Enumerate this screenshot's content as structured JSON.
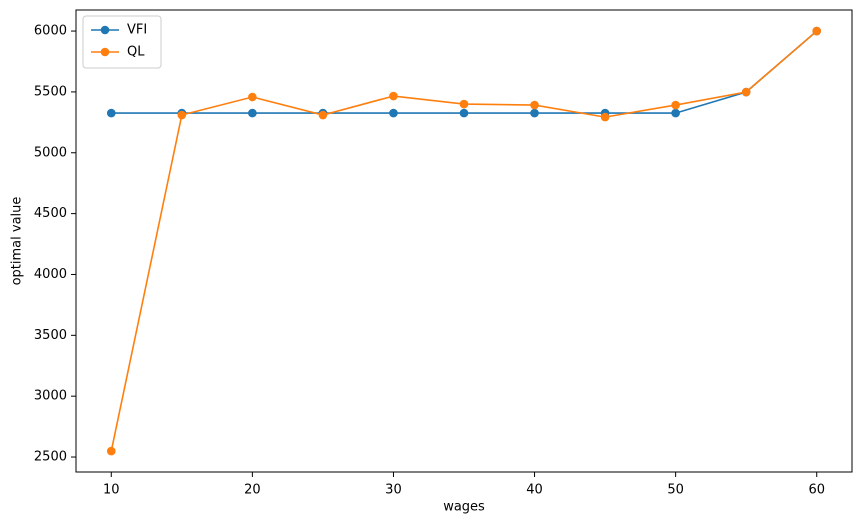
{
  "chart_data": {
    "type": "line",
    "x_label": "wages",
    "y_label": "optimal value",
    "x": [
      10,
      15,
      20,
      25,
      30,
      35,
      40,
      45,
      50,
      55,
      60
    ],
    "series": [
      {
        "name": "VFI",
        "color": "#1f77b4",
        "values": [
          5326,
          5326,
          5326,
          5326,
          5326,
          5326,
          5326,
          5326,
          5326,
          5499,
          6000
        ]
      },
      {
        "name": "QL",
        "color": "#ff7f0e",
        "values": [
          2549,
          5310,
          5458,
          5310,
          5466,
          5400,
          5392,
          5293,
          5392,
          5499,
          6000
        ]
      }
    ],
    "xlim": [
      7.5,
      62.5
    ],
    "xticks": [
      10,
      20,
      30,
      40,
      50,
      60
    ],
    "ylim": [
      2377,
      6173
    ],
    "yticks": [
      2500,
      3000,
      3500,
      4000,
      4500,
      5000,
      5500,
      6000
    ],
    "grid": false,
    "legend": "upper-left",
    "marker": "circle"
  }
}
